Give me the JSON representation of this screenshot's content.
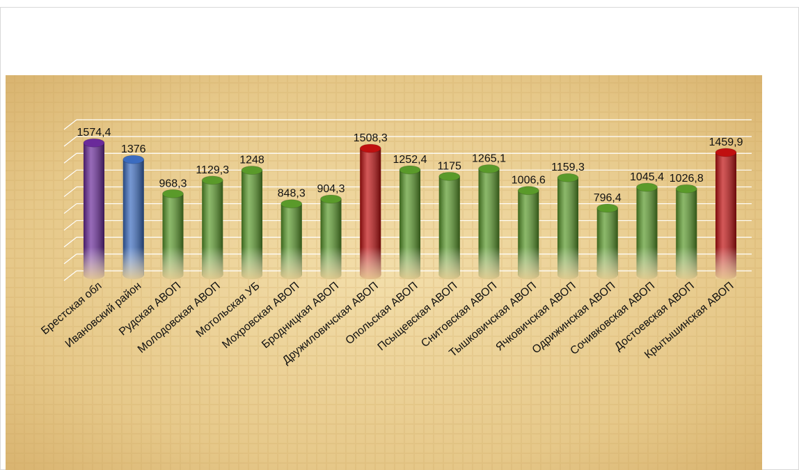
{
  "chart_data": {
    "type": "bar",
    "categories": [
      "Брестская обл",
      "Ивановский район",
      "Рудская АВОП",
      "Молодовская АВОП",
      "Мотольская УБ",
      "Мохровская АВОП",
      "Бродницкая АВОП",
      "Дружиловичская АВОП",
      "Опольская АВОП",
      "Псыщевская АВОП",
      "Снитовская АВОП",
      "Тышковичская АВОП",
      "Ячковичская АВОП",
      "Одрижинская АВОП",
      "Сочивковская АВОП",
      "Достоевская АВОП",
      "Крытышинская АВОП"
    ],
    "values": [
      1574.4,
      1376,
      968.3,
      1129.3,
      1248,
      848.3,
      904.3,
      1508.3,
      1252.4,
      1175,
      1265.1,
      1006.6,
      1159.3,
      796.4,
      1045.4,
      1026.8,
      1459.9
    ],
    "value_labels": [
      "1574,4",
      "1376",
      "968,3",
      "1129,3",
      "1248",
      "848,3",
      "904,3",
      "1508,3",
      "1252,4",
      "1175",
      "1265,1",
      "1006,6",
      "1159,3",
      "796,4",
      "1045,4",
      "1026,8",
      "1459,9"
    ],
    "colors": [
      "#6a2a9a",
      "#3b6cc0",
      "#5a9a2a",
      "#5a9a2a",
      "#5a9a2a",
      "#5a9a2a",
      "#5a9a2a",
      "#c01010",
      "#5a9a2a",
      "#5a9a2a",
      "#5a9a2a",
      "#5a9a2a",
      "#5a9a2a",
      "#5a9a2a",
      "#5a9a2a",
      "#5a9a2a",
      "#c01010"
    ],
    "ylim": [
      0,
      1800
    ],
    "yticks": [
      0,
      200,
      400,
      600,
      800,
      1000,
      1200,
      1400,
      1600,
      1800
    ],
    "grid": true
  }
}
